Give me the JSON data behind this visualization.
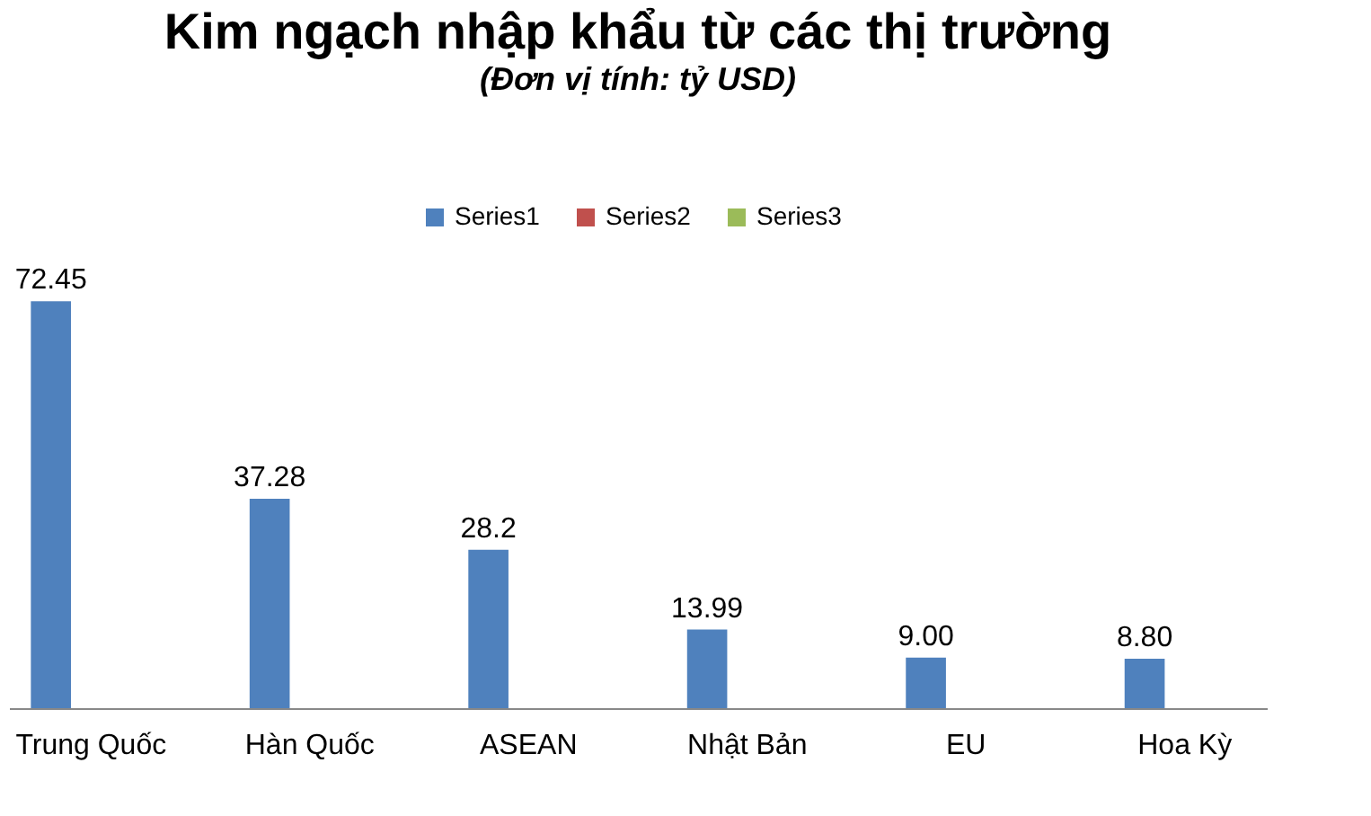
{
  "chart_data": {
    "type": "bar",
    "title": "Kim ngạch nhập khẩu từ các thị trường",
    "subtitle": "(Đơn vị tính: tỷ USD)",
    "categories": [
      "Trung Quốc",
      "Hàn Quốc",
      "ASEAN",
      "Nhật Bản",
      "EU",
      "Hoa Kỳ"
    ],
    "series": [
      {
        "name": "Series1",
        "color": "#4f81bd",
        "values": [
          72.45,
          37.28,
          28.2,
          13.99,
          9.0,
          8.8
        ],
        "value_labels": [
          "72.45",
          "37.28",
          "28.2",
          "13.99",
          "9.00",
          "8.80"
        ]
      },
      {
        "name": "Series2",
        "color": "#c0504d",
        "values": [
          null,
          null,
          null,
          null,
          null,
          null
        ]
      },
      {
        "name": "Series3",
        "color": "#9bbb59",
        "values": [
          null,
          null,
          null,
          null,
          null,
          null
        ]
      }
    ],
    "legend": "top"
  }
}
